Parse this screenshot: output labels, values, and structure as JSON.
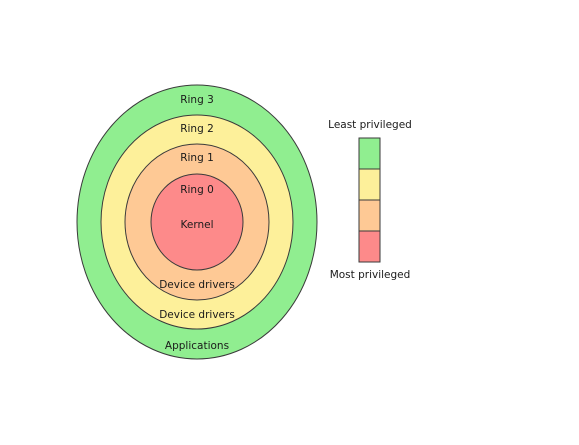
{
  "rings": [
    {
      "ring_label": "Ring 3",
      "content_label": "Applications",
      "color": "#90ee90"
    },
    {
      "ring_label": "Ring 2",
      "content_label": "Device drivers",
      "color": "#fdf09a"
    },
    {
      "ring_label": "Ring 1",
      "content_label": "Device drivers",
      "color": "#fec995"
    },
    {
      "ring_label": "Ring 0",
      "content_label": "Kernel",
      "color": "#fd8a8a"
    }
  ],
  "legend": {
    "top_label": "Least privileged",
    "bottom_label": "Most privileged",
    "colors": [
      "#90ee90",
      "#fdf09a",
      "#fec995",
      "#fd8a8a"
    ]
  }
}
